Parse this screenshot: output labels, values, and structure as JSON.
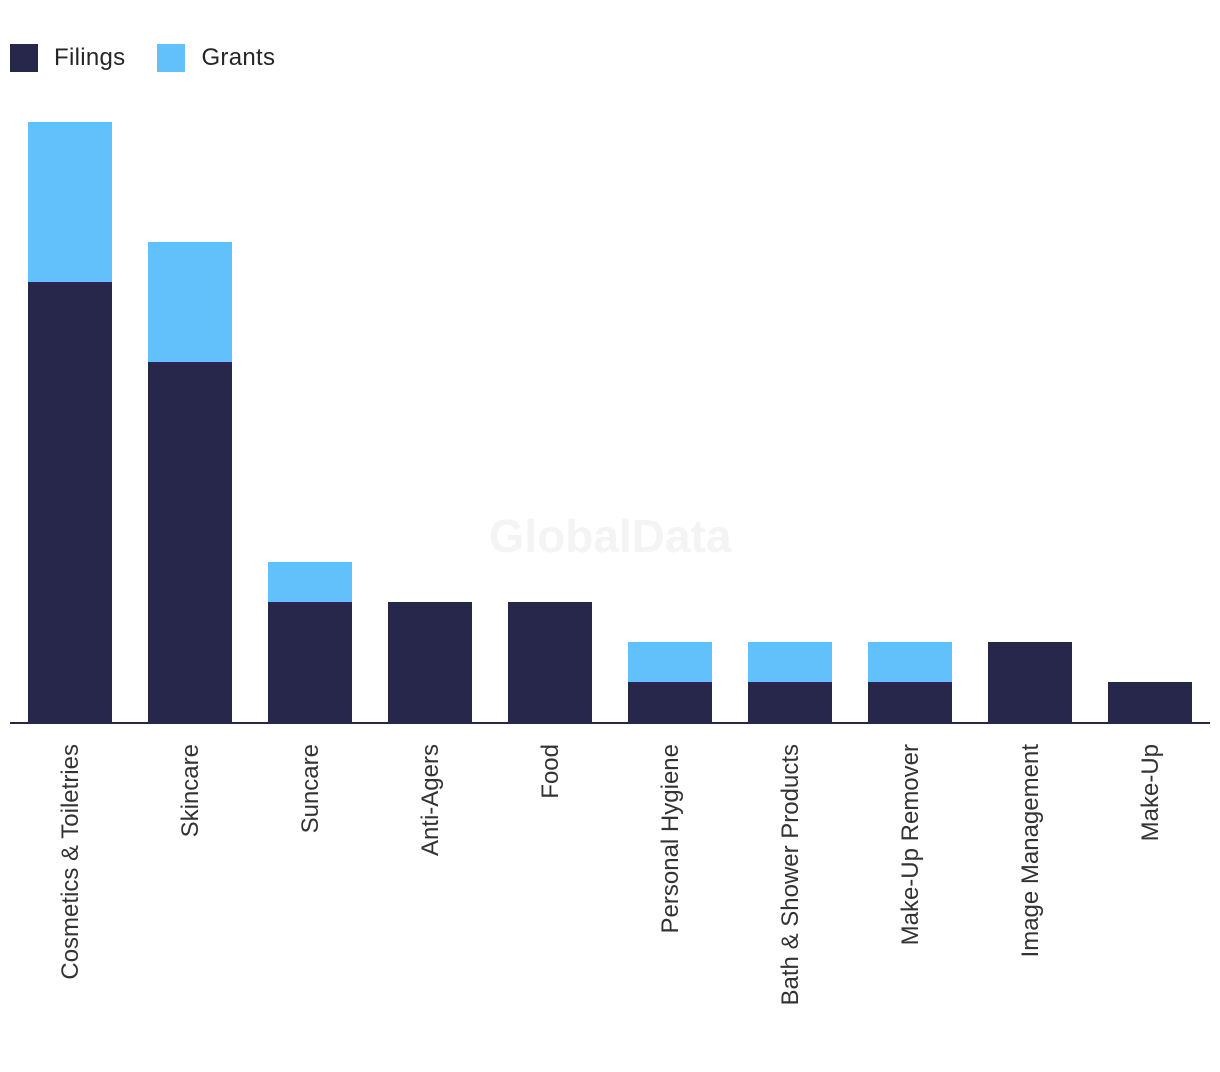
{
  "legend": [
    {
      "name": "Filings",
      "color": "#26274a"
    },
    {
      "name": "Grants",
      "color": "#62c1fa"
    }
  ],
  "watermark": "GlobalData",
  "chart_data": {
    "type": "bar",
    "stacked": true,
    "categories": [
      "Cosmetics & Toiletries",
      "Skincare",
      "Suncare",
      "Anti-Agers",
      "Food",
      "Personal Hygiene",
      "Bath & Shower Products",
      "Make-Up Remover",
      "Image Management",
      "Make-Up"
    ],
    "series": [
      {
        "name": "Filings",
        "color": "#26274a",
        "values": [
          11,
          9,
          3,
          3,
          3,
          1,
          1,
          1,
          2,
          1
        ]
      },
      {
        "name": "Grants",
        "color": "#62c1fa",
        "values": [
          4,
          3,
          1,
          0,
          0,
          1,
          1,
          1,
          0,
          0
        ]
      }
    ],
    "ylim": [
      0,
      15
    ],
    "grid": false,
    "legend_position": "top-left"
  }
}
